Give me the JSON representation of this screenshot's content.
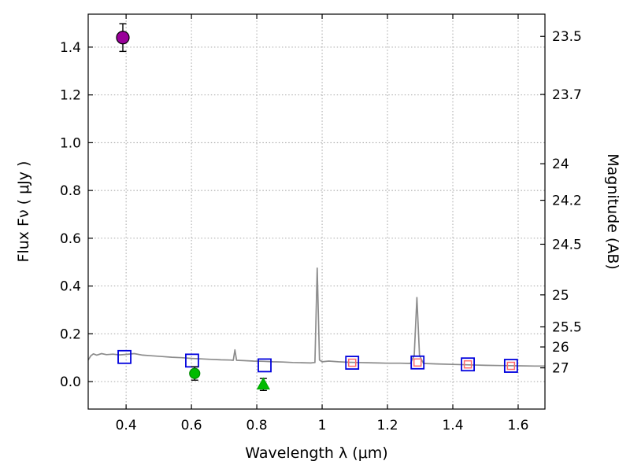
{
  "chart_data": {
    "type": "line",
    "title": "",
    "xlabel": "Wavelength  λ (μm)",
    "ylabel_left": "Flux  Fν  ( μJy )",
    "ylabel_right": "Magnitude (AB)",
    "xlim": [
      0.284,
      1.682
    ],
    "ylim": [
      -0.115,
      1.538
    ],
    "grid": true,
    "grid_color": "#9a9a9a",
    "frame_color": "#000000",
    "x_ticks": [
      {
        "v": 0.4,
        "label": "0.4"
      },
      {
        "v": 0.6,
        "label": "0.6"
      },
      {
        "v": 0.8,
        "label": "0.8"
      },
      {
        "v": 1.0,
        "label": "1"
      },
      {
        "v": 1.2,
        "label": "1.2"
      },
      {
        "v": 1.4,
        "label": "1.4"
      },
      {
        "v": 1.6,
        "label": "1.6"
      }
    ],
    "y_ticks_left": [
      {
        "v": 0.0,
        "label": "0.0"
      },
      {
        "v": 0.2,
        "label": "0.2"
      },
      {
        "v": 0.4,
        "label": "0.4"
      },
      {
        "v": 0.6,
        "label": "0.6"
      },
      {
        "v": 0.8,
        "label": "0.8"
      },
      {
        "v": 1.0,
        "label": "1.0"
      },
      {
        "v": 1.2,
        "label": "1.2"
      },
      {
        "v": 1.4,
        "label": "1.4"
      }
    ],
    "y_ticks_right": [
      {
        "flux": 1.445,
        "label": "23.5"
      },
      {
        "flux": 1.202,
        "label": "23.7"
      },
      {
        "flux": 0.912,
        "label": "24"
      },
      {
        "flux": 0.759,
        "label": "24.2"
      },
      {
        "flux": 0.575,
        "label": "24.5"
      },
      {
        "flux": 0.363,
        "label": "25"
      },
      {
        "flux": 0.229,
        "label": "25.5"
      },
      {
        "flux": 0.145,
        "label": "26"
      },
      {
        "flux": 0.0575,
        "label": "27"
      }
    ],
    "spectrum": {
      "name": "model-spectrum",
      "color": "#8c8c8c",
      "points": [
        [
          0.284,
          0.09
        ],
        [
          0.292,
          0.108
        ],
        [
          0.3,
          0.116
        ],
        [
          0.31,
          0.111
        ],
        [
          0.325,
          0.117
        ],
        [
          0.34,
          0.113
        ],
        [
          0.36,
          0.115
        ],
        [
          0.38,
          0.112
        ],
        [
          0.4,
          0.114
        ],
        [
          0.425,
          0.117
        ],
        [
          0.45,
          0.111
        ],
        [
          0.48,
          0.108
        ],
        [
          0.51,
          0.105
        ],
        [
          0.54,
          0.102
        ],
        [
          0.57,
          0.1
        ],
        [
          0.6,
          0.097
        ],
        [
          0.63,
          0.095
        ],
        [
          0.66,
          0.093
        ],
        [
          0.69,
          0.091
        ],
        [
          0.72,
          0.09
        ],
        [
          0.728,
          0.089
        ],
        [
          0.733,
          0.133
        ],
        [
          0.738,
          0.089
        ],
        [
          0.76,
          0.088
        ],
        [
          0.79,
          0.086
        ],
        [
          0.82,
          0.085
        ],
        [
          0.85,
          0.083
        ],
        [
          0.88,
          0.082
        ],
        [
          0.91,
          0.08
        ],
        [
          0.94,
          0.079
        ],
        [
          0.965,
          0.078
        ],
        [
          0.978,
          0.08
        ],
        [
          0.985,
          0.475
        ],
        [
          0.992,
          0.09
        ],
        [
          1.0,
          0.083
        ],
        [
          1.02,
          0.086
        ],
        [
          1.05,
          0.083
        ],
        [
          1.08,
          0.081
        ],
        [
          1.11,
          0.08
        ],
        [
          1.14,
          0.079
        ],
        [
          1.17,
          0.078
        ],
        [
          1.2,
          0.077
        ],
        [
          1.24,
          0.077
        ],
        [
          1.27,
          0.076
        ],
        [
          1.282,
          0.11
        ],
        [
          1.29,
          0.352
        ],
        [
          1.298,
          0.11
        ],
        [
          1.31,
          0.076
        ],
        [
          1.35,
          0.074
        ],
        [
          1.4,
          0.072
        ],
        [
          1.45,
          0.07
        ],
        [
          1.5,
          0.068
        ],
        [
          1.55,
          0.067
        ],
        [
          1.6,
          0.066
        ],
        [
          1.65,
          0.065
        ],
        [
          1.682,
          0.065
        ]
      ]
    },
    "series": [
      {
        "name": "blue-square-photometry",
        "marker": "square",
        "size": 8,
        "fill": "none",
        "edge": "#0000dd",
        "stroke_width": 1.8,
        "points": [
          [
            0.395,
            0.103
          ],
          [
            0.602,
            0.088
          ],
          [
            0.824,
            0.068
          ],
          [
            1.092,
            0.079
          ],
          [
            1.292,
            0.08
          ],
          [
            1.446,
            0.072
          ],
          [
            1.578,
            0.066
          ]
        ]
      },
      {
        "name": "red-square-photometry",
        "marker": "square",
        "size": 4.5,
        "fill": "none",
        "edge": "#ff6a6a",
        "stroke_width": 1.5,
        "points": [
          [
            1.092,
            0.079
          ],
          [
            1.292,
            0.08
          ],
          [
            1.446,
            0.072
          ],
          [
            1.578,
            0.066
          ]
        ]
      },
      {
        "name": "magenta-detection",
        "marker": "circle",
        "size": 8,
        "fill": "#990099",
        "edge": "#000000",
        "stroke_width": 1.2,
        "error_color": "#000000",
        "points": [
          [
            0.39,
            1.44,
            0.058
          ]
        ]
      },
      {
        "name": "green-detection",
        "marker": "circle",
        "size": 6.5,
        "fill": "#00bb00",
        "edge": "#008800",
        "stroke_width": 1.2,
        "error_color": "#000000",
        "points": [
          [
            0.61,
            0.034,
            0.028
          ]
        ]
      },
      {
        "name": "green-upper-limit",
        "marker": "triangle-up",
        "size": 8,
        "fill": "#00bb00",
        "edge": "#00aa00",
        "stroke_width": 1.2,
        "error_color": "#000000",
        "points": [
          [
            0.82,
            -0.012,
            0.025
          ]
        ]
      }
    ]
  }
}
